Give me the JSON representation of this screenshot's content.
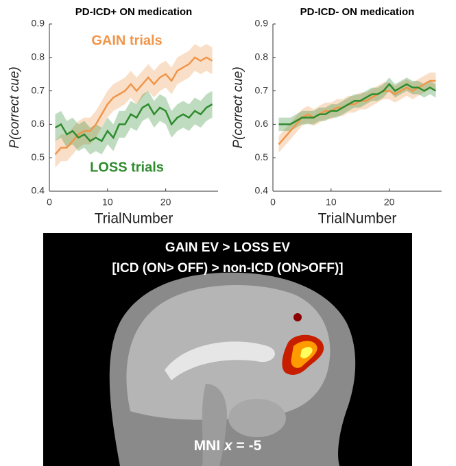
{
  "chart_data": [
    {
      "type": "line",
      "title": "PD-ICD+ ON medication",
      "xlabel": "TrialNumber",
      "ylabel": "P(correct cue)",
      "x": [
        1,
        2,
        3,
        4,
        5,
        6,
        7,
        8,
        9,
        10,
        11,
        12,
        13,
        14,
        15,
        16,
        17,
        18,
        19,
        20,
        21,
        22,
        23,
        24,
        25,
        26,
        27,
        28
      ],
      "xlim": [
        0,
        29
      ],
      "xticks": [
        0,
        10,
        20
      ],
      "ylim": [
        0.4,
        0.9
      ],
      "yticks": [
        0.4,
        0.5,
        0.6,
        0.7,
        0.8,
        0.9
      ],
      "series": [
        {
          "name": "GAIN trials",
          "color": "#f0954a",
          "error": 0.04,
          "values": [
            0.51,
            0.53,
            0.53,
            0.55,
            0.57,
            0.58,
            0.58,
            0.6,
            0.63,
            0.66,
            0.68,
            0.69,
            0.7,
            0.72,
            0.7,
            0.72,
            0.74,
            0.72,
            0.74,
            0.75,
            0.73,
            0.76,
            0.77,
            0.78,
            0.8,
            0.79,
            0.8,
            0.79
          ]
        },
        {
          "name": "LOSS trials",
          "color": "#2e8b2e",
          "error": 0.04,
          "values": [
            0.59,
            0.6,
            0.57,
            0.58,
            0.56,
            0.57,
            0.55,
            0.56,
            0.55,
            0.58,
            0.56,
            0.6,
            0.6,
            0.63,
            0.62,
            0.65,
            0.66,
            0.63,
            0.65,
            0.64,
            0.6,
            0.62,
            0.63,
            0.62,
            0.64,
            0.63,
            0.65,
            0.66
          ]
        }
      ]
    },
    {
      "type": "line",
      "title": "PD-ICD- ON medication",
      "xlabel": "TrialNumber",
      "ylabel": "P(correct cue)",
      "x": [
        1,
        2,
        3,
        4,
        5,
        6,
        7,
        8,
        9,
        10,
        11,
        12,
        13,
        14,
        15,
        16,
        17,
        18,
        19,
        20,
        21,
        22,
        23,
        24,
        25,
        26,
        27,
        28
      ],
      "xlim": [
        0,
        29
      ],
      "xticks": [
        0,
        10,
        20
      ],
      "ylim": [
        0.4,
        0.9
      ],
      "yticks": [
        0.4,
        0.5,
        0.6,
        0.7,
        0.8,
        0.9
      ],
      "series": [
        {
          "color": "#f0954a",
          "error": 0.025,
          "values": [
            0.54,
            0.56,
            0.58,
            0.6,
            0.62,
            0.63,
            0.62,
            0.63,
            0.64,
            0.64,
            0.65,
            0.65,
            0.66,
            0.66,
            0.67,
            0.67,
            0.68,
            0.69,
            0.7,
            0.7,
            0.69,
            0.7,
            0.71,
            0.7,
            0.71,
            0.72,
            0.73,
            0.73
          ]
        },
        {
          "color": "#2e8b2e",
          "error": 0.02,
          "values": [
            0.6,
            0.6,
            0.6,
            0.61,
            0.62,
            0.62,
            0.62,
            0.63,
            0.63,
            0.64,
            0.64,
            0.65,
            0.66,
            0.67,
            0.67,
            0.68,
            0.69,
            0.69,
            0.7,
            0.72,
            0.7,
            0.71,
            0.72,
            0.71,
            0.71,
            0.7,
            0.71,
            0.7
          ]
        }
      ]
    }
  ],
  "image_panel": {
    "title_lines": [
      "GAIN EV > LOSS EV",
      "[ICD (ON> OFF) > non-ICD (ON>OFF)]"
    ],
    "caption": {
      "prefix": "MNI",
      "variable": "x",
      "suffix": "= -5"
    }
  }
}
